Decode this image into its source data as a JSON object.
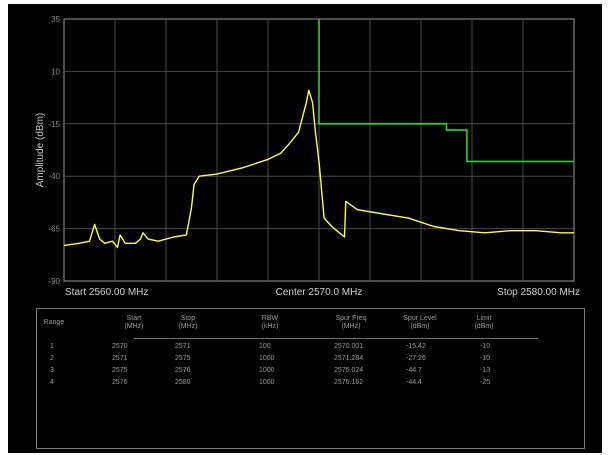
{
  "chart_data": {
    "type": "line",
    "ylabel": "Amplitude (dBm)",
    "y_ticks": [
      "35",
      "10",
      "-15",
      "-40",
      "-65",
      "-90"
    ],
    "ylim": [
      -90,
      35
    ],
    "xlim_mhz": [
      2560,
      2580
    ],
    "x_markers": {
      "start": "Start 2560.00 MHz",
      "center": "Center 2570.0 MHz",
      "stop": "Stop 2580.00 MHz"
    },
    "grid": true,
    "series": [
      {
        "color": "#ffff33",
        "x": [
          2560.0,
          2560.6,
          2561.0,
          2561.2,
          2561.4,
          2561.6,
          2561.9,
          2562.1,
          2562.2,
          2562.4,
          2562.8,
          2563.0,
          2563.1,
          2563.3,
          2563.7,
          2564.3,
          2564.8,
          2565.0,
          2565.1,
          2565.3,
          2566.0,
          2567.0,
          2568.0,
          2568.5,
          2568.8,
          2569.2,
          2569.5,
          2569.6,
          2569.75,
          2569.85,
          2570.0,
          2570.2,
          2570.5,
          2570.7,
          2571.0,
          2571.05,
          2571.5,
          2572.5,
          2573.5,
          2574.5,
          2575.0,
          2575.5,
          2576.5,
          2577.5,
          2578.5,
          2579.5,
          2580.0
        ],
        "values": [
          -73,
          -72,
          -71,
          -63,
          -70,
          -72,
          -71,
          -74,
          -68,
          -72,
          -72,
          -70,
          -67,
          -70,
          -71,
          -69,
          -68,
          -55,
          -44,
          -40,
          -39,
          -36,
          -32,
          -29,
          -25,
          -19,
          -5,
          1,
          -5,
          -18,
          -33,
          -60,
          -64,
          -66,
          -69,
          -52,
          -56,
          -58,
          -60,
          -64,
          -65,
          -66,
          -67,
          -66,
          -66,
          -67,
          -67
        ]
      },
      {
        "color": "#22dd22",
        "x": [
          2570.0,
          2570.0,
          2570.0,
          2575.0,
          2575.0,
          2575.8,
          2575.8,
          2580.0
        ],
        "values": [
          35,
          -15,
          -15,
          -15,
          -18,
          -18,
          -33,
          -33
        ]
      }
    ]
  },
  "table": {
    "headers": [
      {
        "line1": "Range",
        "line2": ""
      },
      {
        "line1": "Start",
        "line2": "(MHz)"
      },
      {
        "line1": "Stop",
        "line2": "(MHz)"
      },
      {
        "line1": "RBW",
        "line2": "(kHz)"
      },
      {
        "line1": "Spur Freq",
        "line2": "(MHz)"
      },
      {
        "line1": "Spur Level",
        "line2": "(dBm)"
      },
      {
        "line1": "Limit",
        "line2": "(dBm)"
      }
    ],
    "rows": [
      [
        "1",
        "2570",
        "2571",
        "100",
        "2570.001",
        "-15.42",
        "-10"
      ],
      [
        "2",
        "2571",
        "2575",
        "1000",
        "2571.284",
        "-27.26",
        "-10"
      ],
      [
        "3",
        "2575",
        "2576",
        "1000",
        "2575.024",
        "-44.7",
        "-13"
      ],
      [
        "4",
        "2576",
        "2580",
        "1000",
        "2576.162",
        "-44.4",
        "-25"
      ]
    ]
  }
}
